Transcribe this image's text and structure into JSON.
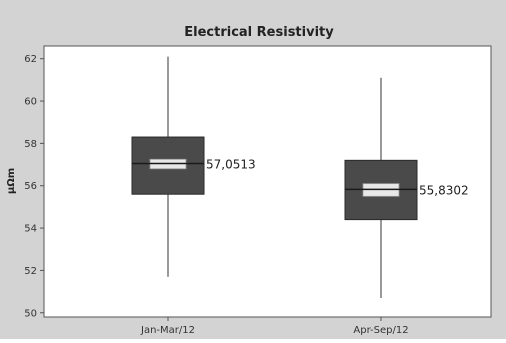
{
  "chart_data": {
    "type": "boxplot",
    "title": "Electrical Resistivity",
    "xlabel": "",
    "ylabel": "μΩm",
    "ylim": [
      49.8,
      62.6
    ],
    "yticks": [
      50,
      52,
      54,
      56,
      58,
      60,
      62
    ],
    "grid": false,
    "categories": [
      "Jan-Mar/12",
      "Apr-Sep/12"
    ],
    "boxes": [
      {
        "category": "Jan-Mar/12",
        "min": 51.7,
        "q1": 55.6,
        "median": 57.0513,
        "q3": 58.3,
        "max": 62.1,
        "ci_low": 56.8,
        "ci_high": 57.25,
        "median_label": "57,0513"
      },
      {
        "category": "Apr-Sep/12",
        "min": 50.7,
        "q1": 54.4,
        "median": 55.8302,
        "q3": 57.2,
        "max": 61.1,
        "ci_low": 55.5,
        "ci_high": 56.1,
        "median_label": "55,8302"
      }
    ],
    "colors": {
      "background": "#d3d3d3",
      "plot_area": "#ffffff",
      "box_fill": "#4a4a4a",
      "ci_fill": "#e8e8e8",
      "line": "#333333"
    }
  }
}
